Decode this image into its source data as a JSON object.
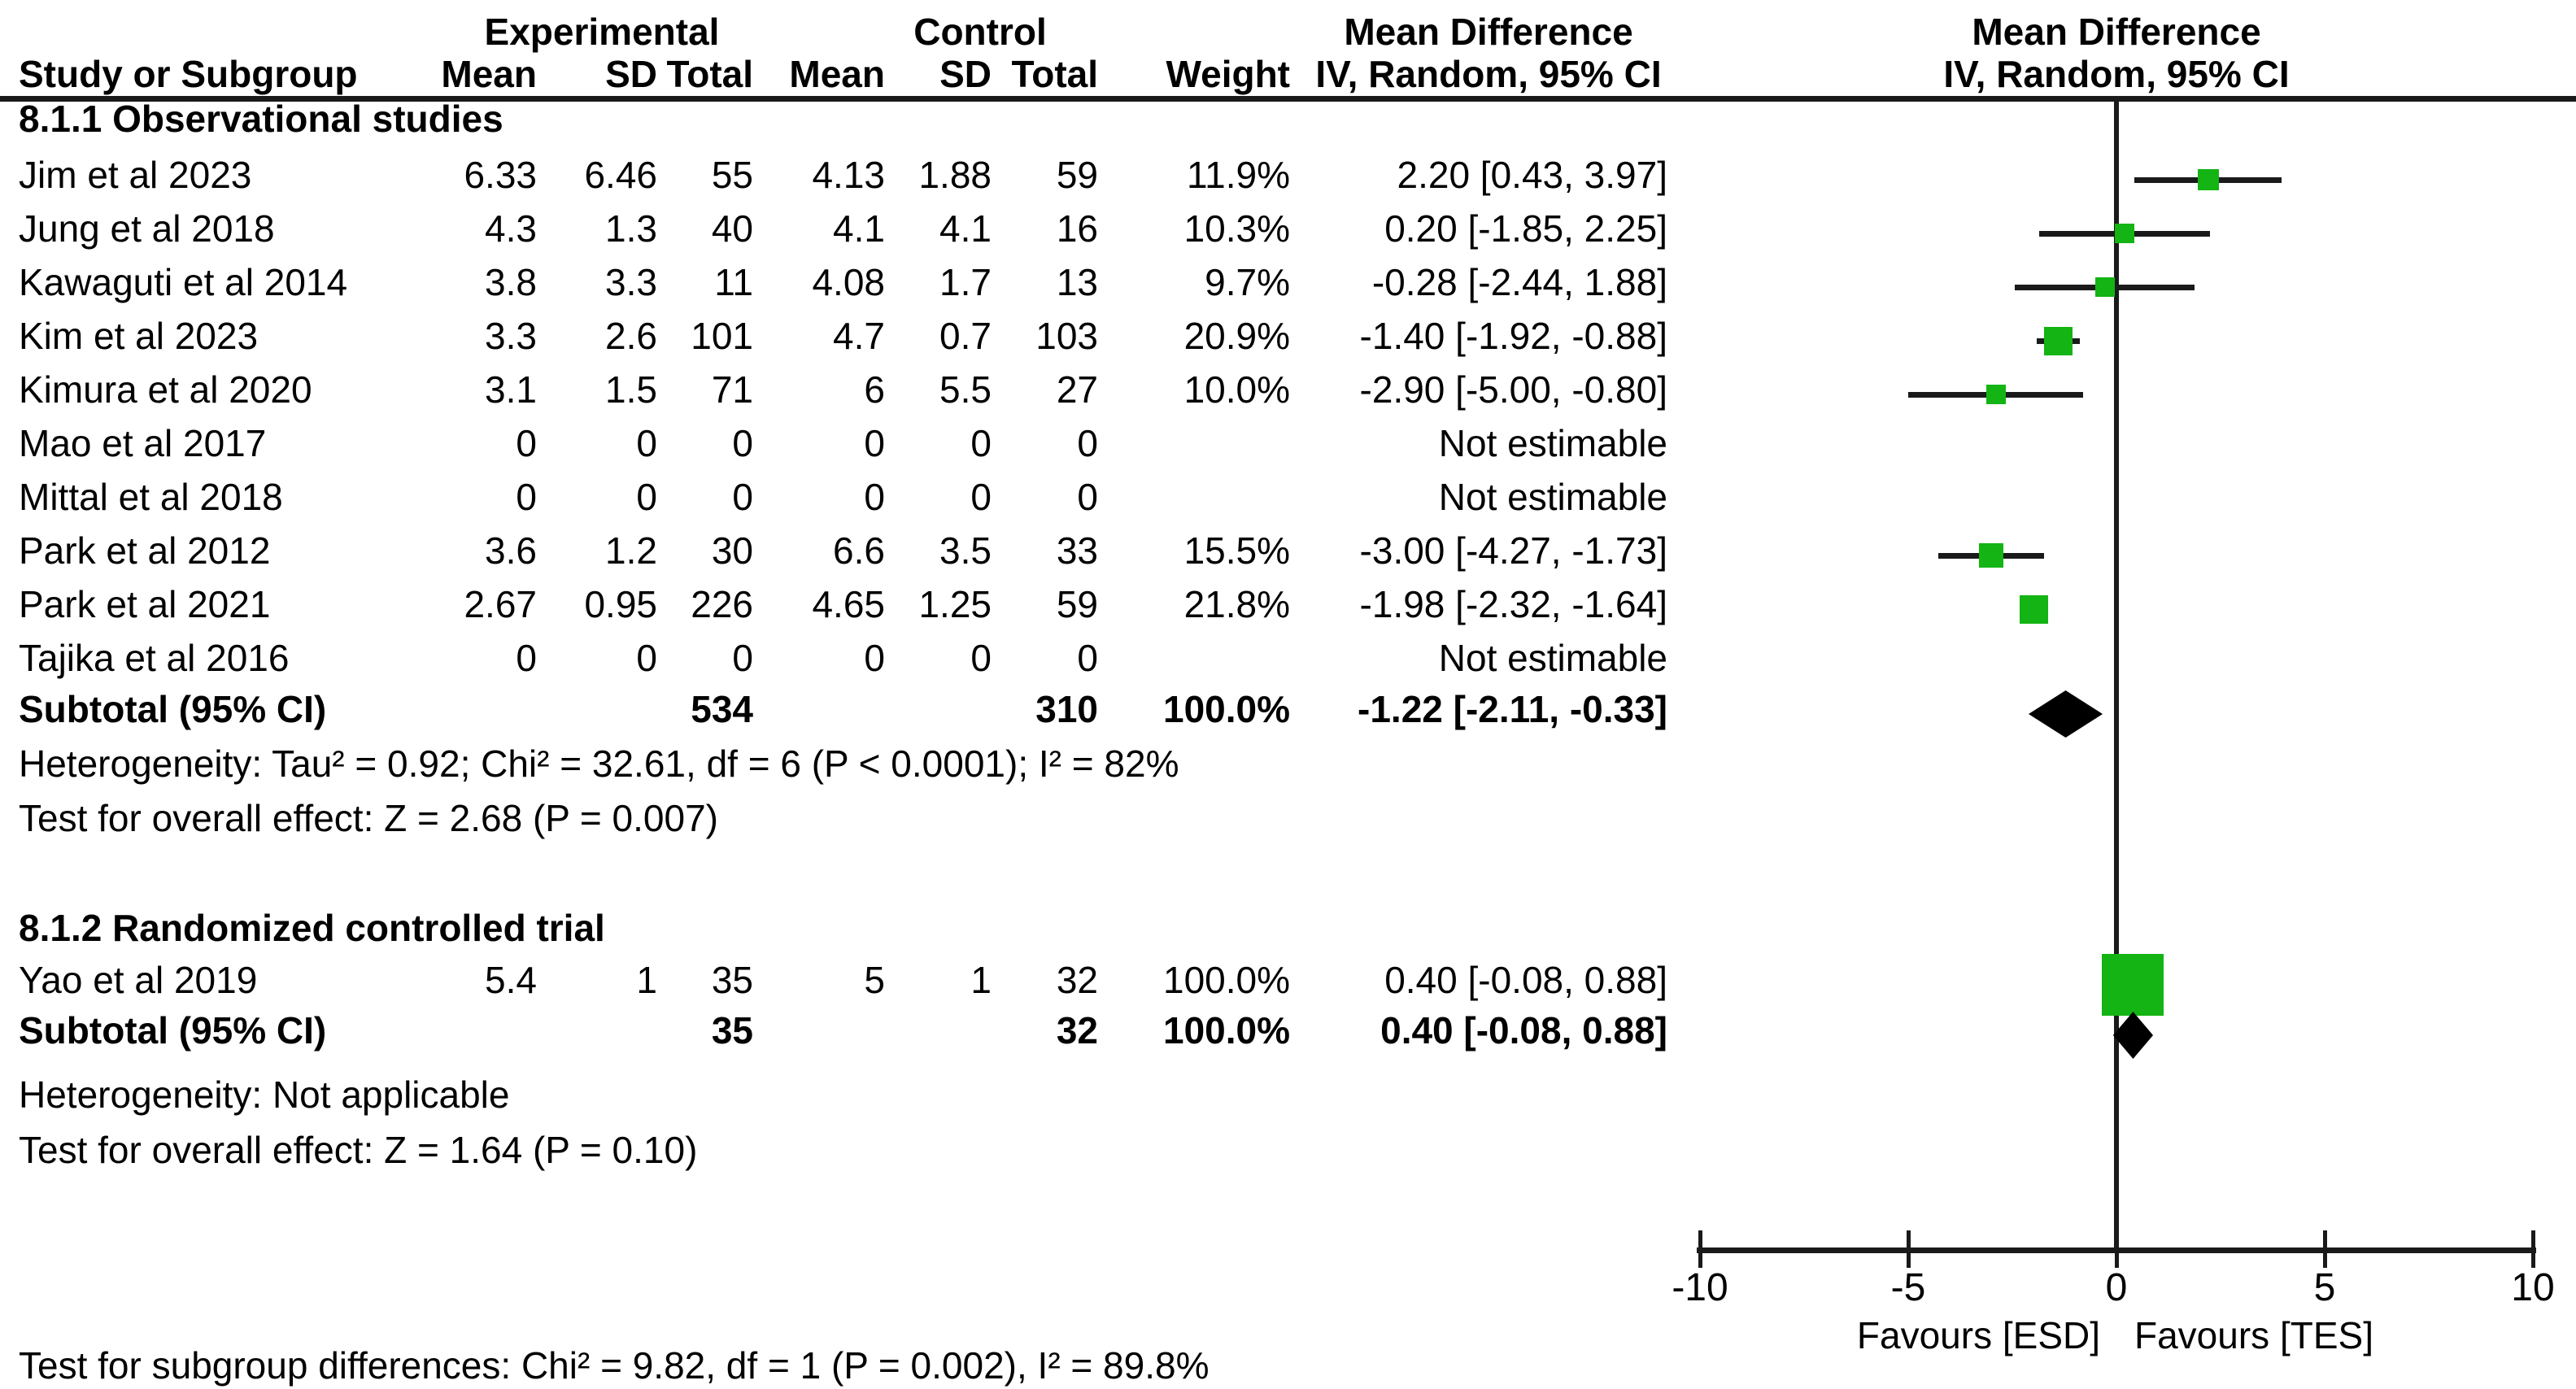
{
  "headers": {
    "experimental": "Experimental",
    "control": "Control",
    "md_text_title": "Mean Difference",
    "md_text_sub": "IV, Random, 95% CI",
    "md_plot_title": "Mean Difference",
    "md_plot_sub": "IV, Random, 95% CI",
    "study_col": "Study or Subgroup",
    "mean_col": "Mean",
    "sd_col": "SD",
    "total_col": "Total",
    "weight_col": "Weight"
  },
  "colors": {
    "marker_green": "#13b413",
    "diamond_black": "#000000",
    "line_black": "#1a1a1a"
  },
  "chart_data": {
    "type": "forest",
    "effect_measure": "Mean Difference, IV, Random, 95% CI",
    "axis": {
      "min": -10,
      "max": 10,
      "ticks": [
        -10,
        -5,
        0,
        5,
        10
      ],
      "favours_left": "Favours [ESD]",
      "favours_right": "Favours [TES]"
    },
    "groups": [
      {
        "title": "8.1.1 Observational studies",
        "studies": [
          {
            "name": "Jim et al 2023",
            "mean_e": "6.33",
            "sd_e": "6.46",
            "total_e": "55",
            "mean_c": "4.13",
            "sd_c": "1.88",
            "total_c": "59",
            "weight": "11.9%",
            "w": 11.9,
            "md_label": "2.20 [0.43, 3.97]",
            "md": 2.2,
            "lo": 0.43,
            "hi": 3.97,
            "estimable": true
          },
          {
            "name": "Jung et al 2018",
            "mean_e": "4.3",
            "sd_e": "1.3",
            "total_e": "40",
            "mean_c": "4.1",
            "sd_c": "4.1",
            "total_c": "16",
            "weight": "10.3%",
            "w": 10.3,
            "md_label": "0.20 [-1.85, 2.25]",
            "md": 0.2,
            "lo": -1.85,
            "hi": 2.25,
            "estimable": true
          },
          {
            "name": "Kawaguti et al 2014",
            "mean_e": "3.8",
            "sd_e": "3.3",
            "total_e": "11",
            "mean_c": "4.08",
            "sd_c": "1.7",
            "total_c": "13",
            "weight": "9.7%",
            "w": 9.7,
            "md_label": "-0.28 [-2.44, 1.88]",
            "md": -0.28,
            "lo": -2.44,
            "hi": 1.88,
            "estimable": true
          },
          {
            "name": "Kim et al 2023",
            "mean_e": "3.3",
            "sd_e": "2.6",
            "total_e": "101",
            "mean_c": "4.7",
            "sd_c": "0.7",
            "total_c": "103",
            "weight": "20.9%",
            "w": 20.9,
            "md_label": "-1.40 [-1.92, -0.88]",
            "md": -1.4,
            "lo": -1.92,
            "hi": -0.88,
            "estimable": true
          },
          {
            "name": "Kimura et al 2020",
            "mean_e": "3.1",
            "sd_e": "1.5",
            "total_e": "71",
            "mean_c": "6",
            "sd_c": "5.5",
            "total_c": "27",
            "weight": "10.0%",
            "w": 10.0,
            "md_label": "-2.90 [-5.00, -0.80]",
            "md": -2.9,
            "lo": -5.0,
            "hi": -0.8,
            "estimable": true
          },
          {
            "name": "Mao et al 2017",
            "mean_e": "0",
            "sd_e": "0",
            "total_e": "0",
            "mean_c": "0",
            "sd_c": "0",
            "total_c": "0",
            "weight": "",
            "w": 0,
            "md_label": "Not estimable",
            "estimable": false
          },
          {
            "name": "Mittal et al 2018",
            "mean_e": "0",
            "sd_e": "0",
            "total_e": "0",
            "mean_c": "0",
            "sd_c": "0",
            "total_c": "0",
            "weight": "",
            "w": 0,
            "md_label": "Not estimable",
            "estimable": false
          },
          {
            "name": "Park et al 2012",
            "mean_e": "3.6",
            "sd_e": "1.2",
            "total_e": "30",
            "mean_c": "6.6",
            "sd_c": "3.5",
            "total_c": "33",
            "weight": "15.5%",
            "w": 15.5,
            "md_label": "-3.00 [-4.27, -1.73]",
            "md": -3.0,
            "lo": -4.27,
            "hi": -1.73,
            "estimable": true
          },
          {
            "name": "Park et al 2021",
            "mean_e": "2.67",
            "sd_e": "0.95",
            "total_e": "226",
            "mean_c": "4.65",
            "sd_c": "1.25",
            "total_c": "59",
            "weight": "21.8%",
            "w": 21.8,
            "md_label": "-1.98 [-2.32, -1.64]",
            "md": -1.98,
            "lo": -2.32,
            "hi": -1.64,
            "estimable": true
          },
          {
            "name": "Tajika et al 2016",
            "mean_e": "0",
            "sd_e": "0",
            "total_e": "0",
            "mean_c": "0",
            "sd_c": "0",
            "total_c": "0",
            "weight": "",
            "w": 0,
            "md_label": "Not estimable",
            "estimable": false
          }
        ],
        "subtotal": {
          "label": "Subtotal (95% CI)",
          "total_e": "534",
          "total_c": "310",
          "weight": "100.0%",
          "md_label": "-1.22 [-2.11, -0.33]",
          "md": -1.22,
          "lo": -2.11,
          "hi": -0.33
        },
        "heterogeneity": "Heterogeneity: Tau² = 0.92; Chi² = 32.61, df = 6 (P < 0.0001); I² = 82%",
        "overall_effect": "Test for overall effect: Z = 2.68 (P = 0.007)"
      },
      {
        "title": "8.1.2 Randomized controlled trial",
        "studies": [
          {
            "name": "Yao et al 2019",
            "mean_e": "5.4",
            "sd_e": "1",
            "total_e": "35",
            "mean_c": "5",
            "sd_c": "1",
            "total_c": "32",
            "weight": "100.0%",
            "w": 100.0,
            "md_label": "0.40 [-0.08, 0.88]",
            "md": 0.4,
            "lo": -0.08,
            "hi": 0.88,
            "estimable": true
          }
        ],
        "subtotal": {
          "label": "Subtotal (95% CI)",
          "total_e": "35",
          "total_c": "32",
          "weight": "100.0%",
          "md_label": "0.40 [-0.08, 0.88]",
          "md": 0.4,
          "lo": -0.08,
          "hi": 0.88
        },
        "heterogeneity": "Heterogeneity: Not applicable",
        "overall_effect": "Test for overall effect: Z = 1.64 (P = 0.10)"
      }
    ],
    "footer": "Test for subgroup differences: Chi² = 9.82, df = 1 (P = 0.002), I² = 89.8%"
  }
}
